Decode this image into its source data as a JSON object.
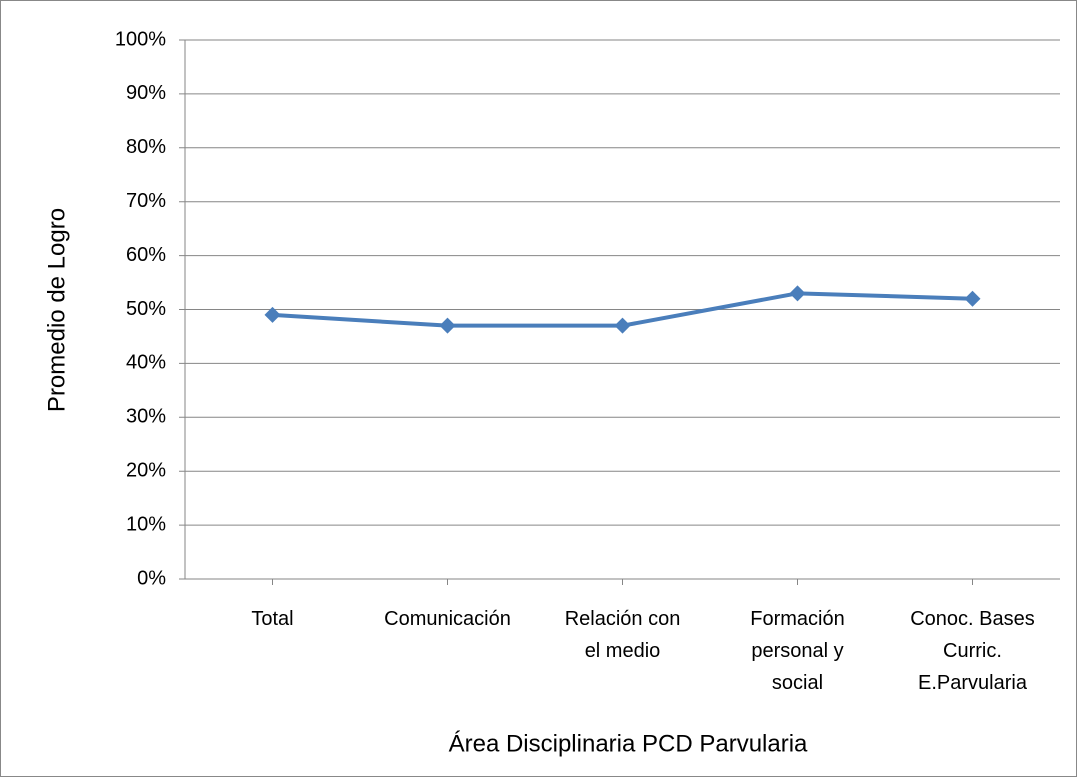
{
  "chart_data": {
    "type": "line",
    "xlabel": "Área Disciplinaria PCD Parvularia",
    "ylabel": "Promedio de Logro",
    "categories": [
      "Total",
      "Comunicación",
      "Relación con\nel medio",
      "Formación\npersonal y\nsocial",
      "Conoc. Bases\nCurric.\nE.Parvularia"
    ],
    "series": [
      {
        "name": "Promedio de Logro",
        "color": "#4a7ebb",
        "values": [
          49,
          47,
          47,
          53,
          52
        ]
      }
    ],
    "ylim": [
      0,
      100
    ],
    "yticks": [
      {
        "value": 0,
        "label": "0%"
      },
      {
        "value": 10,
        "label": "10%"
      },
      {
        "value": 20,
        "label": "20%"
      },
      {
        "value": 30,
        "label": "30%"
      },
      {
        "value": 40,
        "label": "40%"
      },
      {
        "value": 50,
        "label": "50%"
      },
      {
        "value": 60,
        "label": "60%"
      },
      {
        "value": 70,
        "label": "70%"
      },
      {
        "value": 80,
        "label": "80%"
      },
      {
        "value": 90,
        "label": "90%"
      },
      {
        "value": 100,
        "label": "100%"
      }
    ],
    "grid": true
  }
}
